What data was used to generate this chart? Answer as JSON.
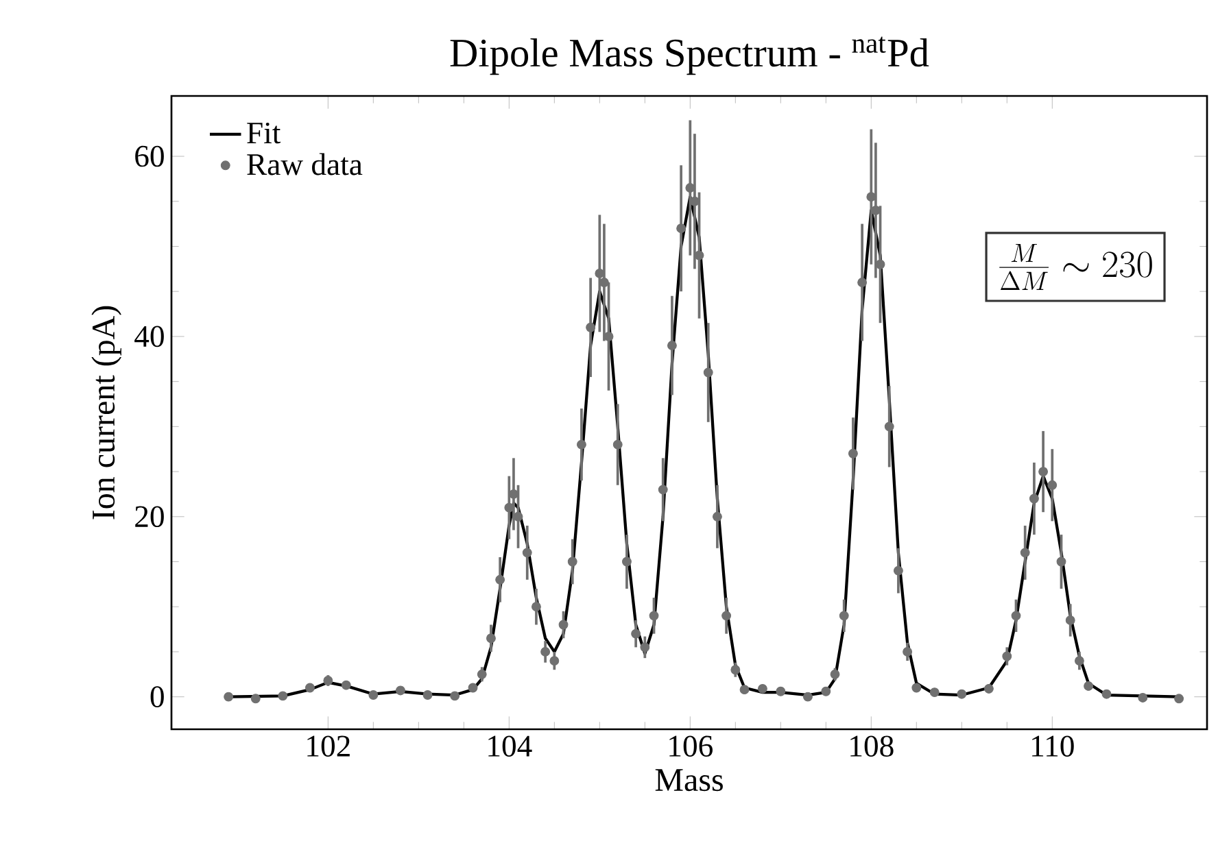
{
  "chart_data": {
    "type": "line",
    "title": "Dipole Mass Spectrum - $^{nat}$Pd",
    "xlabel": "Mass",
    "ylabel": "Ion current (pA)",
    "annotations": [
      "\\frac{M}{\\Delta M}\\sim 230"
    ],
    "xlim": [
      100.27,
      111.71
    ],
    "ylim": [
      -3.6,
      66.7
    ],
    "xticks": [
      102,
      104,
      106,
      108,
      110
    ],
    "yticks": [
      0,
      20,
      40,
      60
    ],
    "legend": "top left",
    "line_style": "solid",
    "series": [
      {
        "name": "Fit",
        "color": "#000000",
        "marker": "none",
        "x": [
          100.9,
          101.5,
          101.8,
          102.0,
          102.2,
          102.5,
          102.8,
          103.1,
          103.4,
          103.6,
          103.7,
          103.8,
          103.9,
          104.0,
          104.05,
          104.1,
          104.2,
          104.3,
          104.4,
          104.5,
          104.6,
          104.7,
          104.8,
          104.9,
          105.0,
          105.1,
          105.2,
          105.3,
          105.4,
          105.5,
          105.6,
          105.7,
          105.8,
          105.9,
          106.0,
          106.1,
          106.2,
          106.3,
          106.4,
          106.5,
          106.6,
          106.8,
          107.0,
          107.3,
          107.5,
          107.6,
          107.7,
          107.8,
          107.9,
          108.0,
          108.1,
          108.2,
          108.3,
          108.4,
          108.5,
          108.7,
          109.0,
          109.3,
          109.5,
          109.6,
          109.7,
          109.8,
          109.9,
          110.0,
          110.1,
          110.2,
          110.3,
          110.4,
          110.6,
          111.4
        ],
        "values": [
          0,
          0.1,
          0.8,
          1.6,
          1.2,
          0.3,
          0.6,
          0.3,
          0.2,
          0.8,
          2,
          5.5,
          12,
          19,
          21.5,
          21,
          17,
          11,
          6.5,
          5,
          7,
          14,
          26,
          39,
          45,
          42,
          30,
          17,
          8,
          4.8,
          8,
          20,
          37,
          50,
          55.5,
          51,
          38,
          22,
          10,
          3.5,
          1,
          0.5,
          0.5,
          0.2,
          0.5,
          2,
          8,
          24,
          43,
          54,
          49,
          33,
          16,
          6,
          1.5,
          0.3,
          0.2,
          1,
          4,
          8.5,
          15,
          21.5,
          24.5,
          22,
          16,
          9,
          4.5,
          1.5,
          0.2,
          0
        ]
      },
      {
        "name": "Raw data",
        "type": "scatter",
        "color": "#707070",
        "marker": "circle",
        "x": [
          100.9,
          101.2,
          101.5,
          101.8,
          102.0,
          102.2,
          102.5,
          102.8,
          103.1,
          103.4,
          103.6,
          103.7,
          103.8,
          103.9,
          104.0,
          104.05,
          104.1,
          104.2,
          104.3,
          104.4,
          104.5,
          104.6,
          104.7,
          104.8,
          104.9,
          105.0,
          105.05,
          105.1,
          105.2,
          105.3,
          105.4,
          105.5,
          105.6,
          105.7,
          105.8,
          105.9,
          106.0,
          106.05,
          106.1,
          106.2,
          106.3,
          106.4,
          106.5,
          106.6,
          106.8,
          107.0,
          107.3,
          107.5,
          107.6,
          107.7,
          107.8,
          107.9,
          108.0,
          108.05,
          108.1,
          108.2,
          108.3,
          108.4,
          108.5,
          108.7,
          109.0,
          109.3,
          109.5,
          109.6,
          109.7,
          109.8,
          109.9,
          110.0,
          110.1,
          110.2,
          110.3,
          110.4,
          110.6,
          111.0,
          111.4
        ],
        "values": [
          0,
          -0.2,
          0.1,
          1.0,
          1.8,
          1.3,
          0.2,
          0.7,
          0.2,
          0.1,
          1.0,
          2.5,
          6.5,
          13,
          21,
          22.5,
          20,
          16,
          10,
          5,
          4,
          8,
          15,
          28,
          41,
          47,
          46,
          40,
          28,
          15,
          7,
          5.5,
          9,
          23,
          39,
          52,
          56.5,
          55,
          49,
          36,
          20,
          9,
          3,
          0.8,
          0.9,
          0.6,
          0,
          0.6,
          2.5,
          9,
          27,
          46,
          55.5,
          54,
          48,
          30,
          14,
          5,
          1,
          0.5,
          0.3,
          0.9,
          4.5,
          9,
          16,
          22,
          25,
          23.5,
          15,
          8.5,
          4,
          1.2,
          0.3,
          -0.1,
          -0.2
        ],
        "errors": [
          0.3,
          0.3,
          0.3,
          0.5,
          0.6,
          0.5,
          0.3,
          0.4,
          0.3,
          0.3,
          0.5,
          0.8,
          1.5,
          2.5,
          3.5,
          4,
          3.5,
          3,
          2,
          1.2,
          1,
          1.5,
          2.5,
          4,
          5.5,
          6.5,
          6.5,
          6,
          4.5,
          3,
          1.5,
          1.2,
          2,
          3.5,
          5.5,
          7,
          7.5,
          7.5,
          7,
          5.5,
          3.5,
          2,
          0.8,
          0.4,
          0.4,
          0.3,
          0.3,
          0.3,
          0.7,
          1.8,
          4,
          6.5,
          7.5,
          7.5,
          6.5,
          4.5,
          2.5,
          1,
          0.5,
          0.3,
          0.3,
          0.5,
          1,
          1.8,
          3,
          4,
          4.5,
          4,
          3,
          1.8,
          1,
          0.5,
          0.3,
          0.3,
          0.3
        ]
      }
    ]
  }
}
